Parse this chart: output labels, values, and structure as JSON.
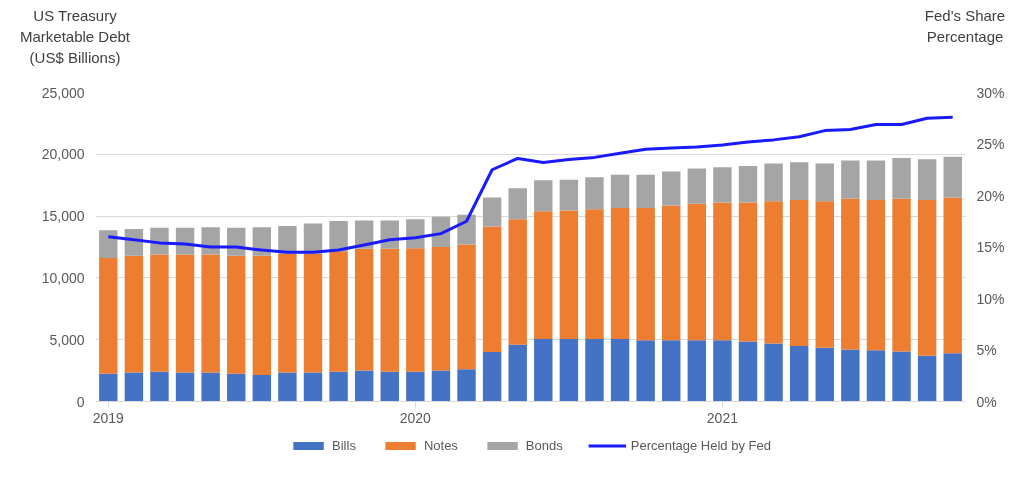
{
  "chart_data": {
    "type": "bar",
    "stacked": true,
    "ylabel": "US Treasury\nMarketable Debt\n(US$ Billions)",
    "y2label": "Fed's Share\nPercentage",
    "categories": [
      "2019",
      null,
      null,
      null,
      null,
      null,
      null,
      null,
      null,
      null,
      null,
      null,
      "2020",
      null,
      null,
      null,
      null,
      null,
      null,
      null,
      null,
      null,
      null,
      null,
      "2021",
      null,
      null,
      null,
      null,
      null,
      null,
      null,
      null,
      null
    ],
    "series": [
      {
        "name": "Bills",
        "color": "#4472c4",
        "values": [
          2250,
          2350,
          2400,
          2350,
          2350,
          2250,
          2150,
          2350,
          2350,
          2400,
          2500,
          2400,
          2400,
          2500,
          2600,
          4000,
          4600,
          5050,
          5050,
          5050,
          5050,
          4950,
          4950,
          4950,
          4950,
          4850,
          4700,
          4500,
          4350,
          4200,
          4150,
          4050,
          3700,
          3900
        ]
      },
      {
        "name": "Notes",
        "color": "#ed7d31",
        "values": [
          9350,
          9450,
          9500,
          9550,
          9550,
          9550,
          9650,
          9600,
          9600,
          9750,
          9850,
          9950,
          10000,
          10000,
          10100,
          10150,
          10150,
          10350,
          10400,
          10500,
          10600,
          10700,
          10900,
          11050,
          11150,
          11250,
          11500,
          11800,
          11850,
          12200,
          12150,
          12350,
          12600,
          12600
        ]
      },
      {
        "name": "Bonds",
        "color": "#a5a5a5",
        "values": [
          2250,
          2150,
          2150,
          2150,
          2200,
          2250,
          2300,
          2250,
          2450,
          2450,
          2300,
          2300,
          2350,
          2450,
          2400,
          2350,
          2500,
          2500,
          2500,
          2600,
          2700,
          2700,
          2750,
          2850,
          2850,
          2950,
          3050,
          3050,
          3050,
          3100,
          3200,
          3300,
          3300,
          3300
        ]
      },
      {
        "name": "Percentage Held by Fed",
        "type": "line",
        "axis": "y2",
        "color": "#1a1aff",
        "values": [
          16.0,
          15.7,
          15.4,
          15.3,
          15.0,
          15.0,
          14.7,
          14.5,
          14.5,
          14.7,
          15.2,
          15.7,
          15.9,
          16.3,
          17.5,
          22.5,
          23.6,
          23.2,
          23.5,
          23.7,
          24.1,
          24.5,
          24.6,
          24.7,
          24.9,
          25.2,
          25.4,
          25.7,
          26.3,
          26.4,
          26.9,
          26.9,
          27.5,
          27.6
        ]
      }
    ],
    "ylim": [
      0,
      25000
    ],
    "yticks": [
      0,
      {
        "value": 5000,
        "label": "5,000"
      },
      {
        "value": 10000,
        "label": "10,000"
      },
      {
        "value": 15000,
        "label": "15,000"
      },
      {
        "value": 20000,
        "label": "20,000"
      },
      {
        "value": 25000,
        "label": "25,000"
      }
    ],
    "y2lim": [
      0,
      30
    ],
    "y2ticks": [
      {
        "value": 0,
        "label": "0%"
      },
      {
        "value": 5,
        "label": "5%"
      },
      {
        "value": 10,
        "label": "10%"
      },
      {
        "value": 15,
        "label": "15%"
      },
      {
        "value": 20,
        "label": "20%"
      },
      {
        "value": 25,
        "label": "25%"
      },
      {
        "value": 30,
        "label": "30%"
      }
    ],
    "grid": "y",
    "legend": "bottom",
    "marker": "none",
    "line_style": "solid"
  }
}
